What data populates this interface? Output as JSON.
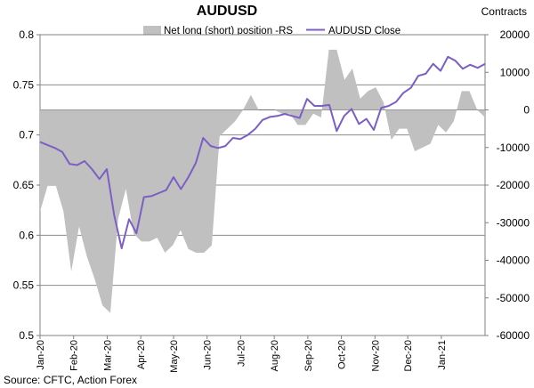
{
  "chart_data": {
    "title": "AUDUSD",
    "type": "line+area",
    "right_axis_title": "Contracts",
    "source": "Source: CFTC, Action Forex",
    "colors": {
      "area": "#c0c0c0",
      "line": "#7b5fc4",
      "grid": "#8c8c8c"
    },
    "left_axis": {
      "min": 0.5,
      "max": 0.8,
      "ticks": [
        "0.5",
        "0.55",
        "0.6",
        "0.65",
        "0.7",
        "0.75",
        "0.8"
      ]
    },
    "right_axis": {
      "min": -60000,
      "max": 20000,
      "ticks": [
        "-60000",
        "-50000",
        "-40000",
        "-30000",
        "-20000",
        "-10000",
        "0",
        "10000",
        "20000"
      ]
    },
    "x_labels": [
      "Jan-20",
      "Feb-20",
      "Mar-20",
      "Apr-20",
      "May-20",
      "Jun-20",
      "Jul-20",
      "Aug-20",
      "Sep-20",
      "Oct-20",
      "Nov-20",
      "Dec-20",
      "Jan-21"
    ],
    "x_label_positions": [
      0,
      4.3,
      8.6,
      12.9,
      17.1,
      21.4,
      25.7,
      30,
      34.3,
      38.6,
      42.9,
      47.1,
      51.4
    ],
    "series": [
      {
        "name": "Net long (short) position -RS",
        "axis": "right",
        "kind": "area",
        "values": [
          -27000,
          -20000,
          -20000,
          -27000,
          -43000,
          -31000,
          -39000,
          -45000,
          -52000,
          -54000,
          -29000,
          -21000,
          -33000,
          -35000,
          -35000,
          -34000,
          -38000,
          -36000,
          -32000,
          -37000,
          -38000,
          -38000,
          -36000,
          -7000,
          -5000,
          -3000,
          0,
          4000,
          0,
          0,
          0,
          -1000,
          -1000,
          -4000,
          -4000,
          -1000,
          -2000,
          16000,
          16000,
          8000,
          11000,
          3000,
          5000,
          6000,
          2000,
          -8000,
          -5000,
          -5000,
          -11000,
          -10000,
          -9000,
          -4000,
          -6000,
          -3000,
          5000,
          5000,
          0,
          -2000
        ]
      },
      {
        "name": "AUDUSD Close",
        "axis": "left",
        "kind": "line",
        "values": [
          0.693,
          0.69,
          0.687,
          0.683,
          0.671,
          0.67,
          0.674,
          0.666,
          0.656,
          0.666,
          0.62,
          0.587,
          0.616,
          0.602,
          0.638,
          0.639,
          0.642,
          0.645,
          0.658,
          0.646,
          0.658,
          0.672,
          0.697,
          0.689,
          0.687,
          0.689,
          0.697,
          0.696,
          0.7,
          0.706,
          0.715,
          0.718,
          0.719,
          0.721,
          0.719,
          0.717,
          0.736,
          0.729,
          0.729,
          0.73,
          0.704,
          0.719,
          0.726,
          0.711,
          0.716,
          0.705,
          0.727,
          0.729,
          0.733,
          0.742,
          0.747,
          0.759,
          0.761,
          0.771,
          0.764,
          0.778,
          0.774,
          0.766,
          0.77,
          0.767,
          0.771
        ]
      }
    ]
  }
}
